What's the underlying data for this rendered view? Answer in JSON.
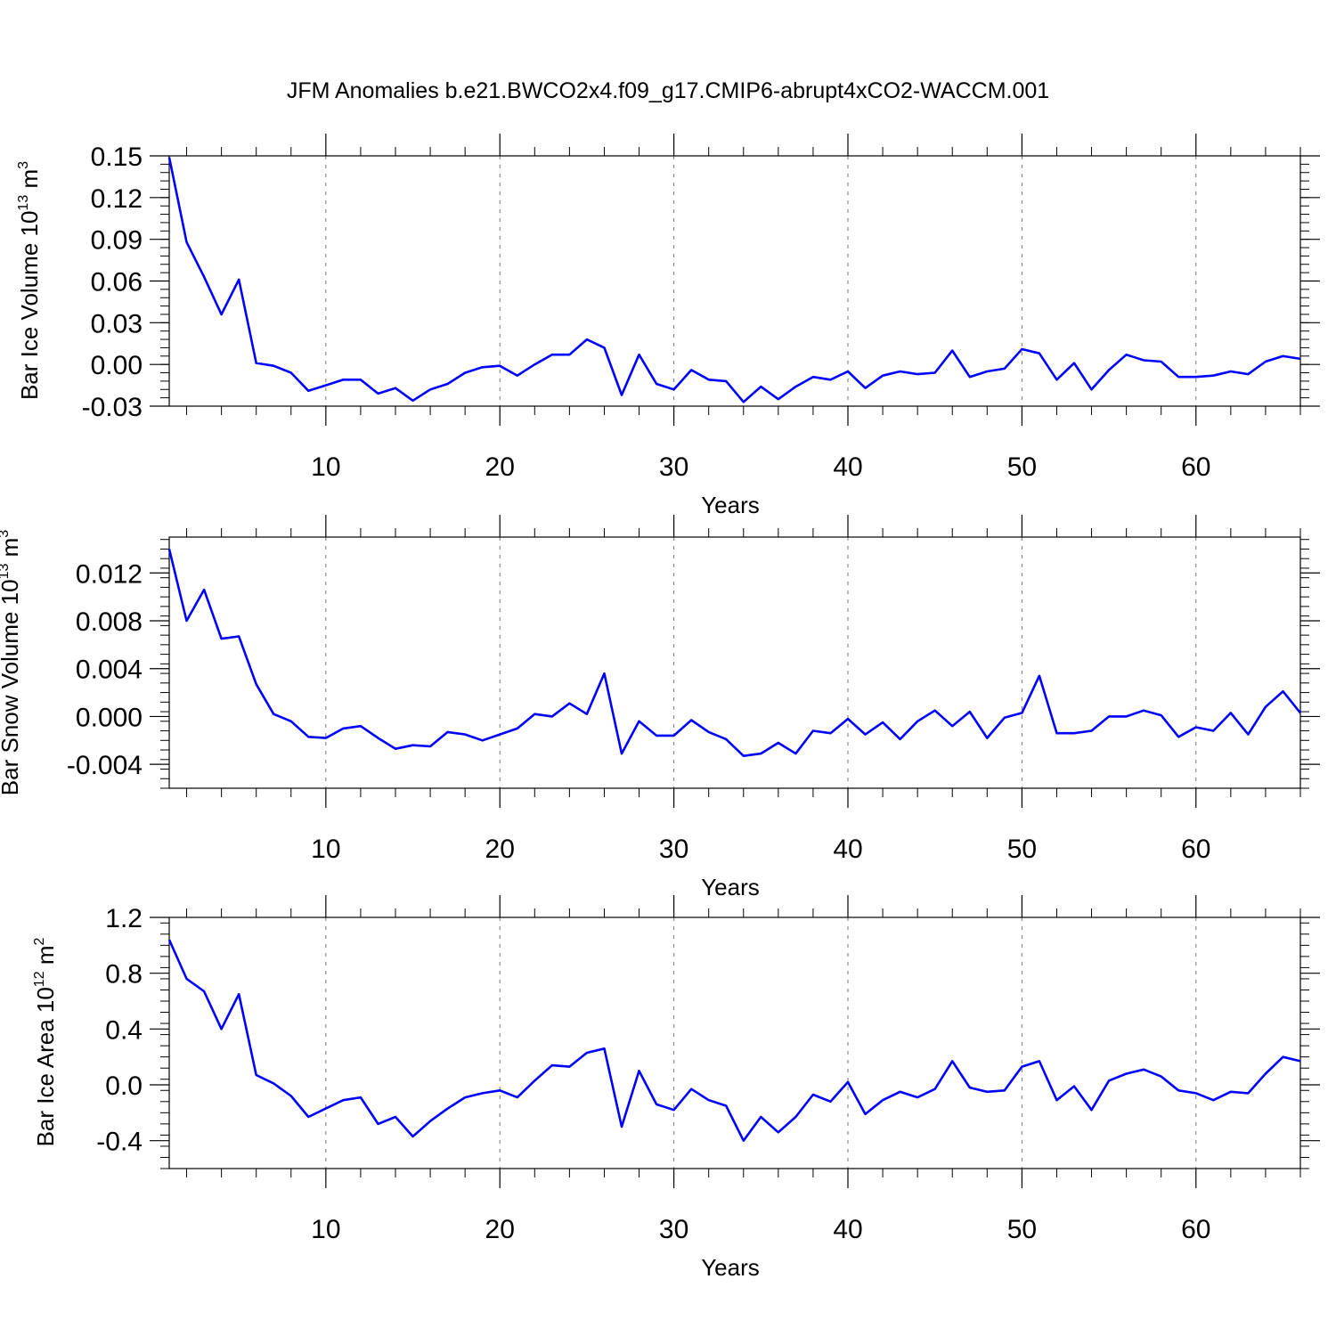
{
  "title": "JFM Anomalies b.e21.BWCO2x4.f09_g17.CMIP6-abrupt4xCO2-WACCM.001",
  "colors": {
    "line": "#0000ff",
    "axis": "#000000",
    "grid": "#777777"
  },
  "chart_data": [
    {
      "type": "line",
      "xlabel": "Years",
      "ylabel": {
        "base": "Bar Ice Volume 10",
        "exp": "13",
        "unit": " m",
        "unit_exp": "3"
      },
      "xlim": [
        1,
        66
      ],
      "ylim": [
        -0.03,
        0.15
      ],
      "xticks": [
        10,
        20,
        30,
        40,
        50,
        60
      ],
      "yticks": [
        -0.03,
        0.0,
        0.03,
        0.06,
        0.09,
        0.12,
        0.15
      ],
      "ytick_labels": [
        "-0.03",
        "0.00",
        "0.03",
        "0.06",
        "0.09",
        "0.12",
        "0.15"
      ],
      "grid": "vertical dashed at major x ticks",
      "x": [
        1,
        2,
        3,
        4,
        5,
        6,
        7,
        8,
        9,
        10,
        11,
        12,
        13,
        14,
        15,
        16,
        17,
        18,
        19,
        20,
        21,
        22,
        23,
        24,
        25,
        26,
        27,
        28,
        29,
        30,
        31,
        32,
        33,
        34,
        35,
        36,
        37,
        38,
        39,
        40,
        41,
        42,
        43,
        44,
        45,
        46,
        47,
        48,
        49,
        50,
        51,
        52,
        53,
        54,
        55,
        56,
        57,
        58,
        59,
        60,
        61,
        62,
        63,
        64,
        65,
        66
      ],
      "values": [
        0.149,
        0.088,
        0.063,
        0.036,
        0.061,
        0.001,
        -0.001,
        -0.006,
        -0.019,
        -0.015,
        -0.011,
        -0.011,
        -0.021,
        -0.017,
        -0.026,
        -0.018,
        -0.014,
        -0.006,
        -0.002,
        -0.001,
        -0.008,
        0.0,
        0.007,
        0.007,
        0.018,
        0.012,
        -0.022,
        0.007,
        -0.014,
        -0.018,
        -0.004,
        -0.011,
        -0.012,
        -0.027,
        -0.016,
        -0.025,
        -0.016,
        -0.009,
        -0.011,
        -0.005,
        -0.017,
        -0.008,
        -0.005,
        -0.007,
        -0.006,
        0.01,
        -0.009,
        -0.005,
        -0.003,
        0.011,
        0.008,
        -0.011,
        0.001,
        -0.018,
        -0.004,
        0.007,
        0.003,
        0.002,
        -0.009,
        -0.009,
        -0.008,
        -0.005,
        -0.007,
        0.002,
        0.006,
        0.004
      ]
    },
    {
      "type": "line",
      "xlabel": "Years",
      "ylabel": {
        "base": "Bar Snow Volume 10",
        "exp": "13",
        "unit": " m",
        "unit_exp": "3"
      },
      "xlim": [
        1,
        66
      ],
      "ylim": [
        -0.006,
        0.015
      ],
      "xticks": [
        10,
        20,
        30,
        40,
        50,
        60
      ],
      "yticks": [
        -0.004,
        0.0,
        0.004,
        0.008,
        0.012
      ],
      "ytick_labels": [
        "-0.004",
        "0.000",
        "0.004",
        "0.008",
        "0.012"
      ],
      "grid": "vertical dashed at major x ticks",
      "x": [
        1,
        2,
        3,
        4,
        5,
        6,
        7,
        8,
        9,
        10,
        11,
        12,
        13,
        14,
        15,
        16,
        17,
        18,
        19,
        20,
        21,
        22,
        23,
        24,
        25,
        26,
        27,
        28,
        29,
        30,
        31,
        32,
        33,
        34,
        35,
        36,
        37,
        38,
        39,
        40,
        41,
        42,
        43,
        44,
        45,
        46,
        47,
        48,
        49,
        50,
        51,
        52,
        53,
        54,
        55,
        56,
        57,
        58,
        59,
        60,
        61,
        62,
        63,
        64,
        65,
        66
      ],
      "values": [
        0.014,
        0.008,
        0.0106,
        0.0065,
        0.0067,
        0.0027,
        0.0002,
        -0.0004,
        -0.0017,
        -0.0018,
        -0.001,
        -0.0008,
        -0.0018,
        -0.0027,
        -0.0024,
        -0.0025,
        -0.0013,
        -0.0015,
        -0.002,
        -0.0015,
        -0.001,
        0.0002,
        0.0,
        0.0011,
        0.0002,
        0.0036,
        -0.0031,
        -0.0004,
        -0.0016,
        -0.0016,
        -0.0003,
        -0.0013,
        -0.0019,
        -0.0033,
        -0.0031,
        -0.0022,
        -0.0031,
        -0.0012,
        -0.0014,
        -0.0002,
        -0.0015,
        -0.0005,
        -0.0019,
        -0.0004,
        0.0005,
        -0.0008,
        0.0004,
        -0.0018,
        -0.0001,
        0.0003,
        0.0034,
        -0.0014,
        -0.0014,
        -0.0012,
        0.0,
        0.0,
        0.0005,
        0.0001,
        -0.0017,
        -0.0009,
        -0.0012,
        0.0003,
        -0.0015,
        0.0008,
        0.0021,
        0.0003
      ]
    },
    {
      "type": "line",
      "xlabel": "Years",
      "ylabel": {
        "base": "Bar Ice Area 10",
        "exp": "12",
        "unit": " m",
        "unit_exp": "2"
      },
      "xlim": [
        1,
        66
      ],
      "ylim": [
        -0.6,
        1.2
      ],
      "xticks": [
        10,
        20,
        30,
        40,
        50,
        60
      ],
      "yticks": [
        -0.4,
        0.0,
        0.4,
        0.8,
        1.2
      ],
      "ytick_labels": [
        "-0.4",
        "0.0",
        "0.4",
        "0.8",
        "1.2"
      ],
      "grid": "vertical dashed at major x ticks",
      "x": [
        1,
        2,
        3,
        4,
        5,
        6,
        7,
        8,
        9,
        10,
        11,
        12,
        13,
        14,
        15,
        16,
        17,
        18,
        19,
        20,
        21,
        22,
        23,
        24,
        25,
        26,
        27,
        28,
        29,
        30,
        31,
        32,
        33,
        34,
        35,
        36,
        37,
        38,
        39,
        40,
        41,
        42,
        43,
        44,
        45,
        46,
        47,
        48,
        49,
        50,
        51,
        52,
        53,
        54,
        55,
        56,
        57,
        58,
        59,
        60,
        61,
        62,
        63,
        64,
        65,
        66
      ],
      "values": [
        1.04,
        0.76,
        0.67,
        0.4,
        0.65,
        0.07,
        0.01,
        -0.08,
        -0.23,
        -0.17,
        -0.11,
        -0.09,
        -0.28,
        -0.23,
        -0.37,
        -0.26,
        -0.17,
        -0.09,
        -0.06,
        -0.04,
        -0.09,
        0.03,
        0.14,
        0.13,
        0.23,
        0.26,
        -0.3,
        0.1,
        -0.14,
        -0.18,
        -0.03,
        -0.11,
        -0.15,
        -0.4,
        -0.23,
        -0.34,
        -0.23,
        -0.07,
        -0.12,
        0.02,
        -0.21,
        -0.11,
        -0.05,
        -0.09,
        -0.03,
        0.17,
        -0.02,
        -0.05,
        -0.04,
        0.13,
        0.17,
        -0.11,
        -0.01,
        -0.18,
        0.03,
        0.08,
        0.11,
        0.06,
        -0.04,
        -0.06,
        -0.11,
        -0.05,
        -0.06,
        0.08,
        0.2,
        0.17
      ]
    }
  ]
}
